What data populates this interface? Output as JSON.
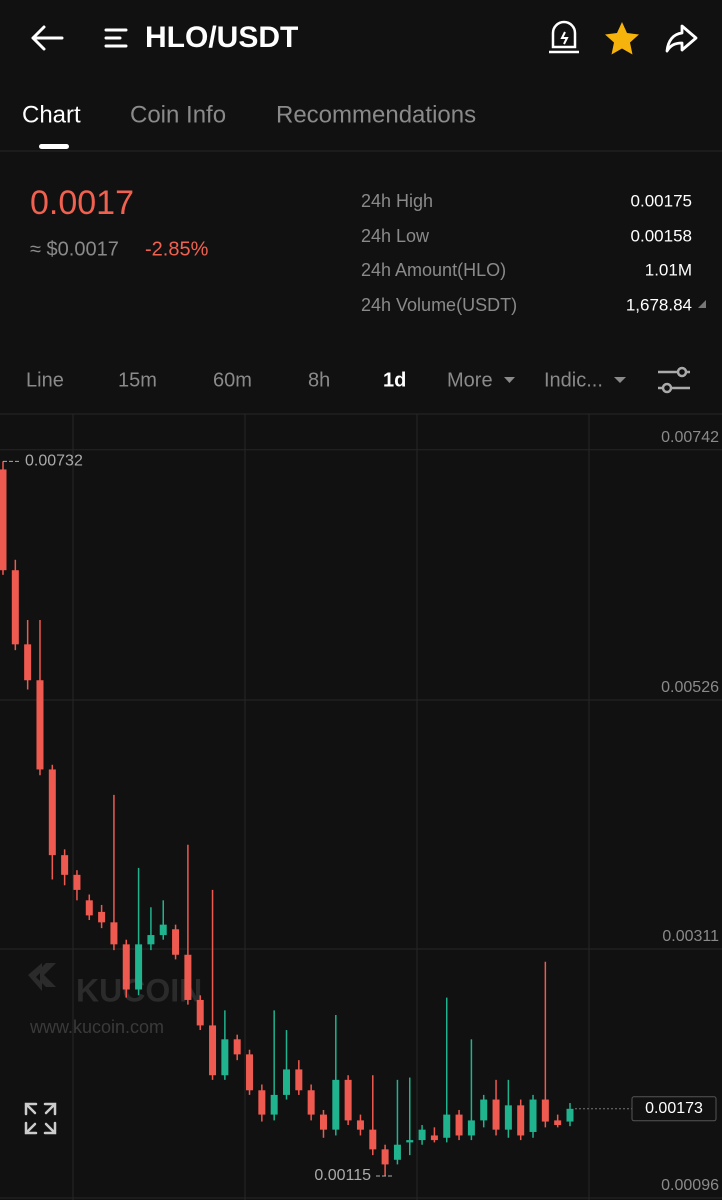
{
  "header": {
    "title": "HLO/USDT"
  },
  "tabs": [
    "Chart",
    "Coin Info",
    "Recommendations"
  ],
  "price": {
    "last": "0.0017",
    "usd": "≈ $0.0017",
    "change": "-2.85%"
  },
  "stats": [
    {
      "label": "24h High",
      "value": "0.00175"
    },
    {
      "label": "24h Low",
      "value": "0.00158"
    },
    {
      "label": "24h Amount(HLO)",
      "value": "1.01M"
    },
    {
      "label": "24h Volume(USDT)",
      "value": "1,678.84"
    }
  ],
  "intervals": [
    "Line",
    "15m",
    "60m",
    "8h",
    "1d",
    "More",
    "Indic..."
  ],
  "watermark": {
    "brand": "KUCOIN",
    "url": "www.kucoin.com"
  },
  "chart_data": {
    "type": "candlestick",
    "open": [
      0.00725,
      0.00638,
      0.00574,
      0.00543,
      0.00466,
      0.00392,
      0.00375,
      0.00353,
      0.00343,
      0.00334,
      0.00315,
      0.00276,
      0.00315,
      0.00323,
      0.00328,
      0.00306,
      0.00267,
      0.00245,
      0.00202,
      0.00233,
      0.0022,
      0.00189,
      0.00168,
      0.00185,
      0.00207,
      0.00189,
      0.00168,
      0.00155,
      0.00198,
      0.00163,
      0.00155,
      0.00138,
      0.00129,
      0.00144,
      0.00146,
      0.0015,
      0.00148,
      0.00168,
      0.0015,
      0.00163,
      0.00181,
      0.00155,
      0.00176,
      0.00153,
      0.00181,
      0.00163,
      0.00162
    ],
    "high": [
      0.00732,
      0.00647,
      0.00595,
      0.00595,
      0.0047,
      0.00397,
      0.00379,
      0.00358,
      0.00349,
      0.00444,
      0.00319,
      0.00381,
      0.00347,
      0.00353,
      0.00332,
      0.00401,
      0.00271,
      0.00362,
      0.00258,
      0.00237,
      0.00224,
      0.00194,
      0.00258,
      0.00241,
      0.00215,
      0.00194,
      0.00172,
      0.00254,
      0.00202,
      0.00168,
      0.00202,
      0.00142,
      0.00198,
      0.002,
      0.00159,
      0.00157,
      0.00269,
      0.00172,
      0.00233,
      0.00185,
      0.00198,
      0.00198,
      0.00181,
      0.00185,
      0.003,
      0.00168,
      0.00178
    ],
    "low": [
      0.00634,
      0.00569,
      0.00535,
      0.00461,
      0.00371,
      0.00366,
      0.00353,
      0.00336,
      0.00329,
      0.0031,
      0.00269,
      0.00271,
      0.0031,
      0.00319,
      0.00302,
      0.00263,
      0.00241,
      0.00198,
      0.00198,
      0.00215,
      0.00185,
      0.00162,
      0.00163,
      0.00181,
      0.00185,
      0.00163,
      0.00148,
      0.0015,
      0.00159,
      0.0015,
      0.00133,
      0.00115,
      0.00125,
      0.00133,
      0.00142,
      0.00144,
      0.00144,
      0.00146,
      0.00146,
      0.00157,
      0.0015,
      0.00148,
      0.00146,
      0.00148,
      0.00157,
      0.00157,
      0.00158
    ],
    "close": [
      0.00638,
      0.00574,
      0.00543,
      0.00466,
      0.00392,
      0.00375,
      0.00362,
      0.0034,
      0.00334,
      0.00315,
      0.00276,
      0.00315,
      0.00323,
      0.00332,
      0.00306,
      0.00267,
      0.00245,
      0.00202,
      0.00233,
      0.0022,
      0.00189,
      0.00168,
      0.00185,
      0.00207,
      0.00189,
      0.00168,
      0.00155,
      0.00198,
      0.00163,
      0.00155,
      0.00138,
      0.00125,
      0.00142,
      0.00146,
      0.00155,
      0.00146,
      0.00168,
      0.0015,
      0.00163,
      0.00181,
      0.00155,
      0.00176,
      0.0015,
      0.00181,
      0.00162,
      0.00159,
      0.00173
    ],
    "ylim": [
      0.00096,
      0.00772
    ],
    "yticks": [
      0.00742,
      0.00526,
      0.00311,
      0.00096
    ],
    "grid": true,
    "up_color": "#1fb38e",
    "down_color": "#ef5a50",
    "max_label": 0.00732,
    "min_label": 0.00115,
    "last_price": 0.00173
  }
}
